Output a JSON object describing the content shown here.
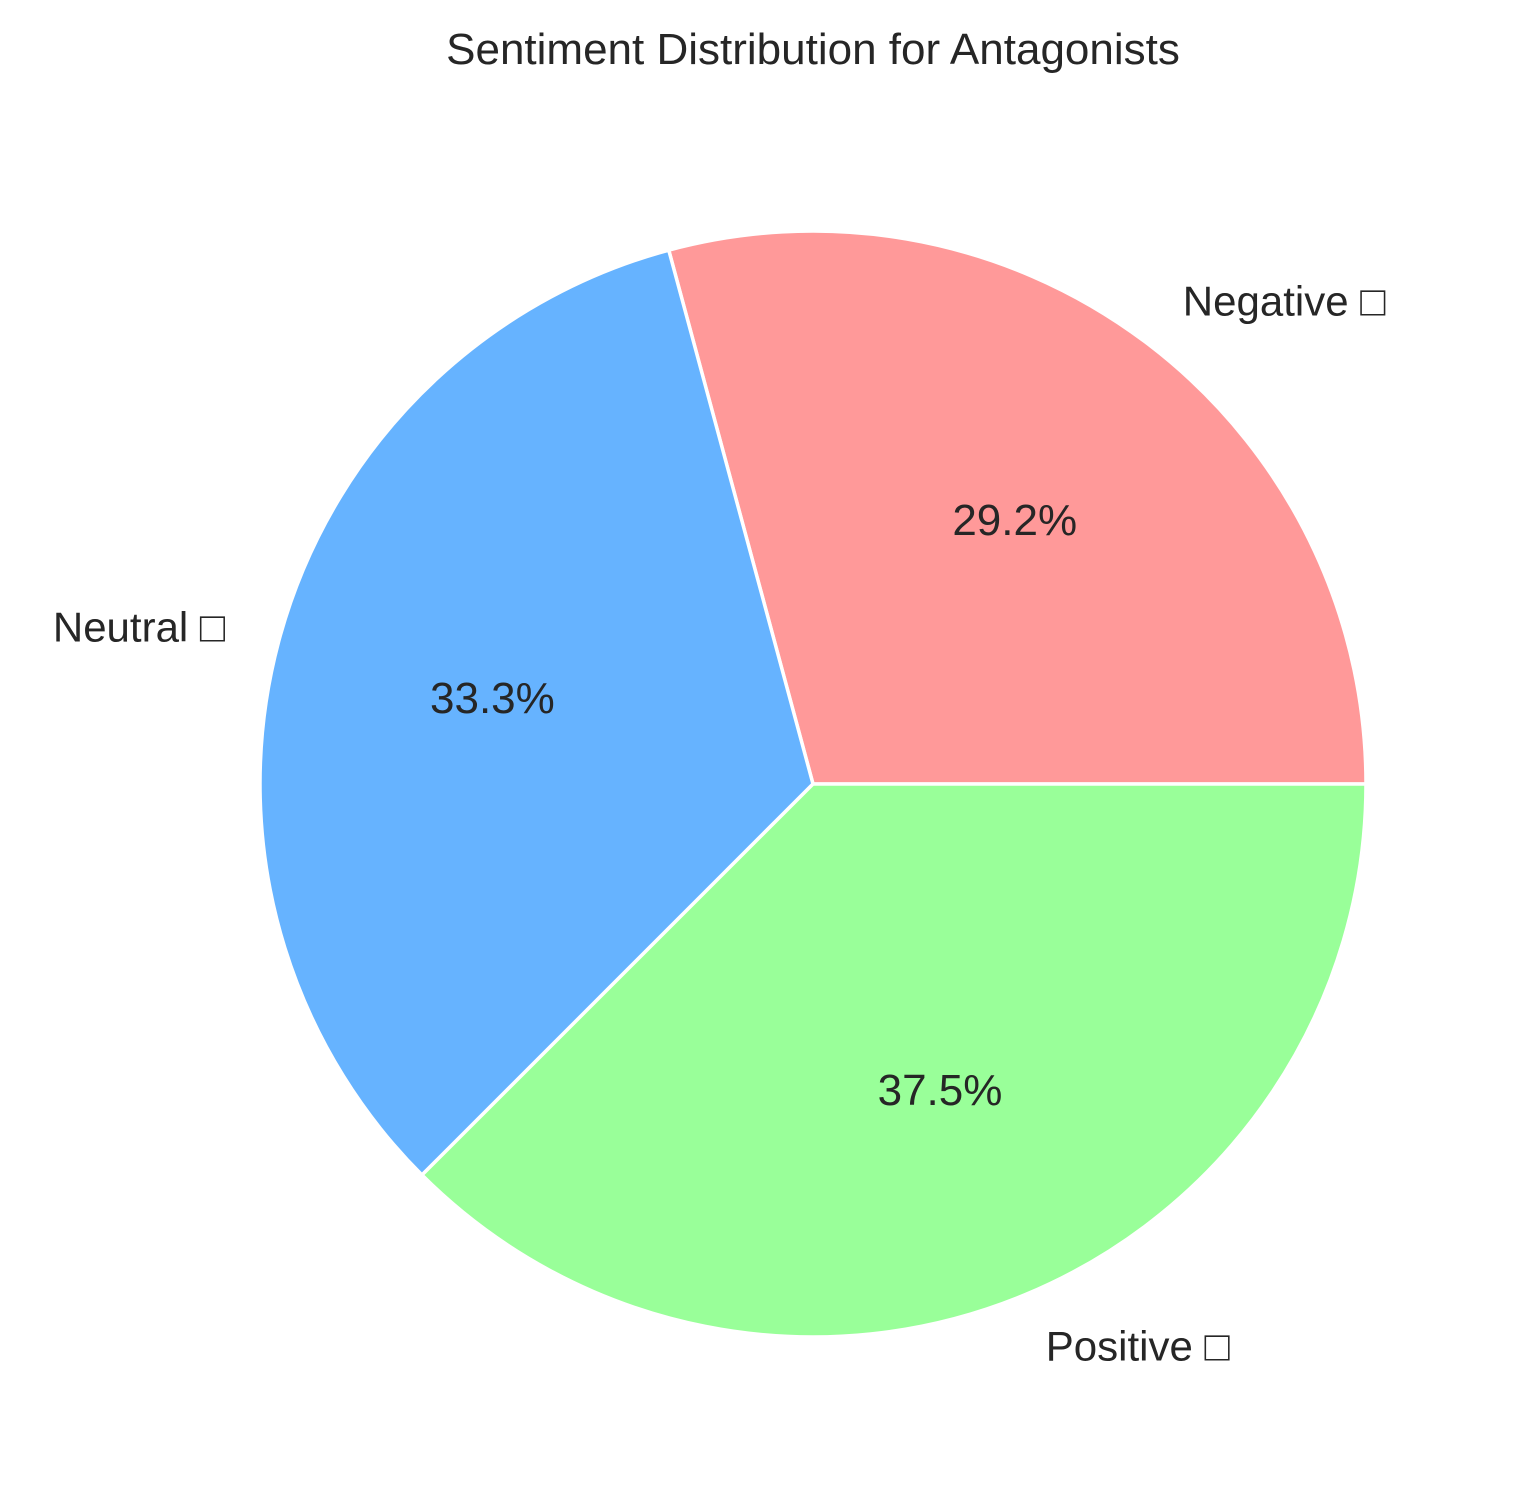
{
  "chart_data": {
    "type": "pie",
    "title": "Sentiment Distribution for Antagonists",
    "slices": [
      {
        "label": "Negative □",
        "value": 29.2,
        "pct_label": "29.2%",
        "color": "#ff9999"
      },
      {
        "label": "Neutral □",
        "value": 33.3,
        "pct_label": "33.3%",
        "color": "#66b3ff"
      },
      {
        "label": "Positive □",
        "value": 37.5,
        "pct_label": "37.5%",
        "color": "#99ff99"
      }
    ],
    "start_angle_deg": 0,
    "direction": "counterclockwise",
    "edge_color": "#ffffff"
  }
}
